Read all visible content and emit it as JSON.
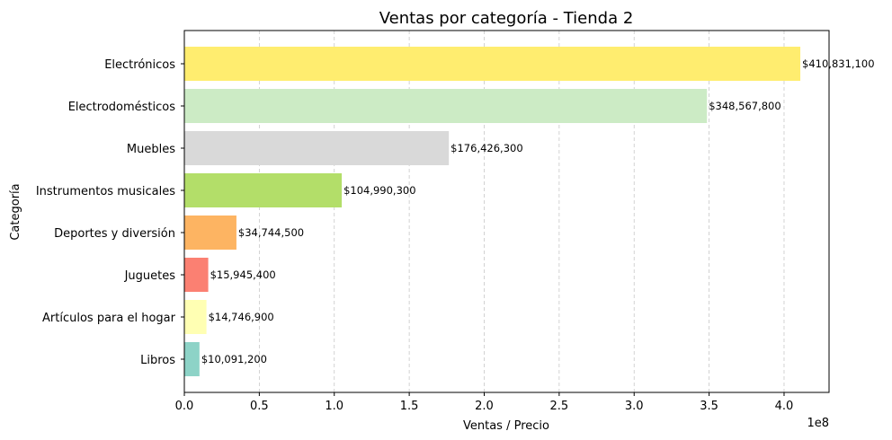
{
  "chart_data": {
    "type": "bar",
    "orientation": "horizontal",
    "title": "Ventas por categoría - Tienda 2",
    "xlabel": "Ventas / Precio",
    "ylabel": "Categoría",
    "x_scale_label": "1e8",
    "xlim": [
      0,
      430000000
    ],
    "xticks": [
      0,
      50000000,
      100000000,
      150000000,
      200000000,
      250000000,
      300000000,
      350000000,
      400000000
    ],
    "xtick_labels": [
      "0.0",
      "0.5",
      "1.0",
      "1.5",
      "2.0",
      "2.5",
      "3.0",
      "3.5",
      "4.0"
    ],
    "grid": "x-dashed",
    "categories": [
      "Electrónicos",
      "Electrodomésticos",
      "Muebles",
      "Instrumentos musicales",
      "Deportes y diversión",
      "Juguetes",
      "Artículos para el hogar",
      "Libros"
    ],
    "values": [
      410831100,
      348567800,
      176426300,
      104990300,
      34744500,
      15945400,
      14746900,
      10091200
    ],
    "value_labels": [
      "$410,831,100",
      "$348,567,800",
      "$176,426,300",
      "$104,990,300",
      "$34,744,500",
      "$15,945,400",
      "$14,746,900",
      "$10,091,200"
    ],
    "colors": [
      "#ffed6f",
      "#ccebc5",
      "#d9d9d9",
      "#b3de69",
      "#fdb462",
      "#fb8072",
      "#ffffb3",
      "#8dd3c7"
    ]
  }
}
